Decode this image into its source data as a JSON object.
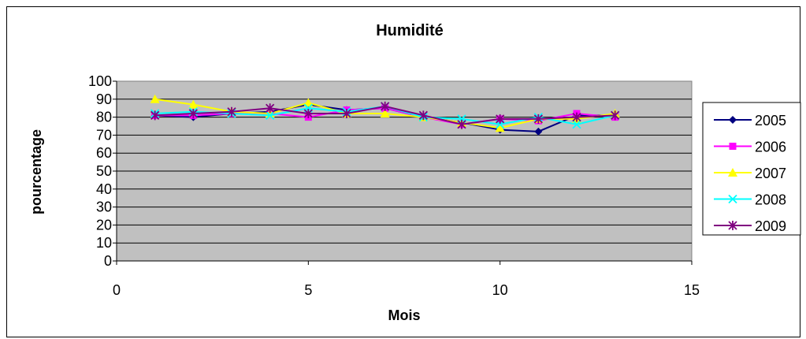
{
  "chart_data": {
    "type": "line",
    "title": "Humidité",
    "xlabel": "Mois",
    "ylabel": "pourcentage",
    "xlim": [
      0,
      15
    ],
    "ylim": [
      0,
      100
    ],
    "xticks": [
      0,
      5,
      10,
      15
    ],
    "yticks": [
      0,
      10,
      20,
      30,
      40,
      50,
      60,
      70,
      80,
      90,
      100
    ],
    "grid": "horizontal",
    "legend_position": "right",
    "plot_background": "#c0c0c0",
    "x": [
      1,
      2,
      3,
      4,
      5,
      6,
      7,
      8,
      9,
      10,
      11,
      12,
      13
    ],
    "series": [
      {
        "name": "2005",
        "color": "#000080",
        "marker": "diamond",
        "values": [
          81,
          80,
          82,
          83,
          87,
          84,
          85,
          80,
          77,
          73,
          72,
          81,
          81
        ]
      },
      {
        "name": "2006",
        "color": "#ff00ff",
        "marker": "square",
        "values": [
          81,
          81,
          82,
          82,
          80,
          84,
          85,
          80,
          76,
          79,
          78,
          82,
          80
        ]
      },
      {
        "name": "2007",
        "color": "#ffff00",
        "marker": "triangle",
        "values": [
          90,
          87,
          83,
          82,
          88,
          82,
          82,
          80,
          77,
          74,
          79,
          79,
          82
        ]
      },
      {
        "name": "2008",
        "color": "#00ffff",
        "marker": "x",
        "values": [
          82,
          83,
          82,
          81,
          85,
          83,
          86,
          80,
          79,
          76,
          80,
          76,
          81
        ]
      },
      {
        "name": "2009",
        "color": "#800080",
        "marker": "star",
        "values": [
          81,
          82,
          83,
          85,
          82,
          82,
          86,
          81,
          76,
          79,
          79,
          80,
          81
        ]
      }
    ]
  }
}
